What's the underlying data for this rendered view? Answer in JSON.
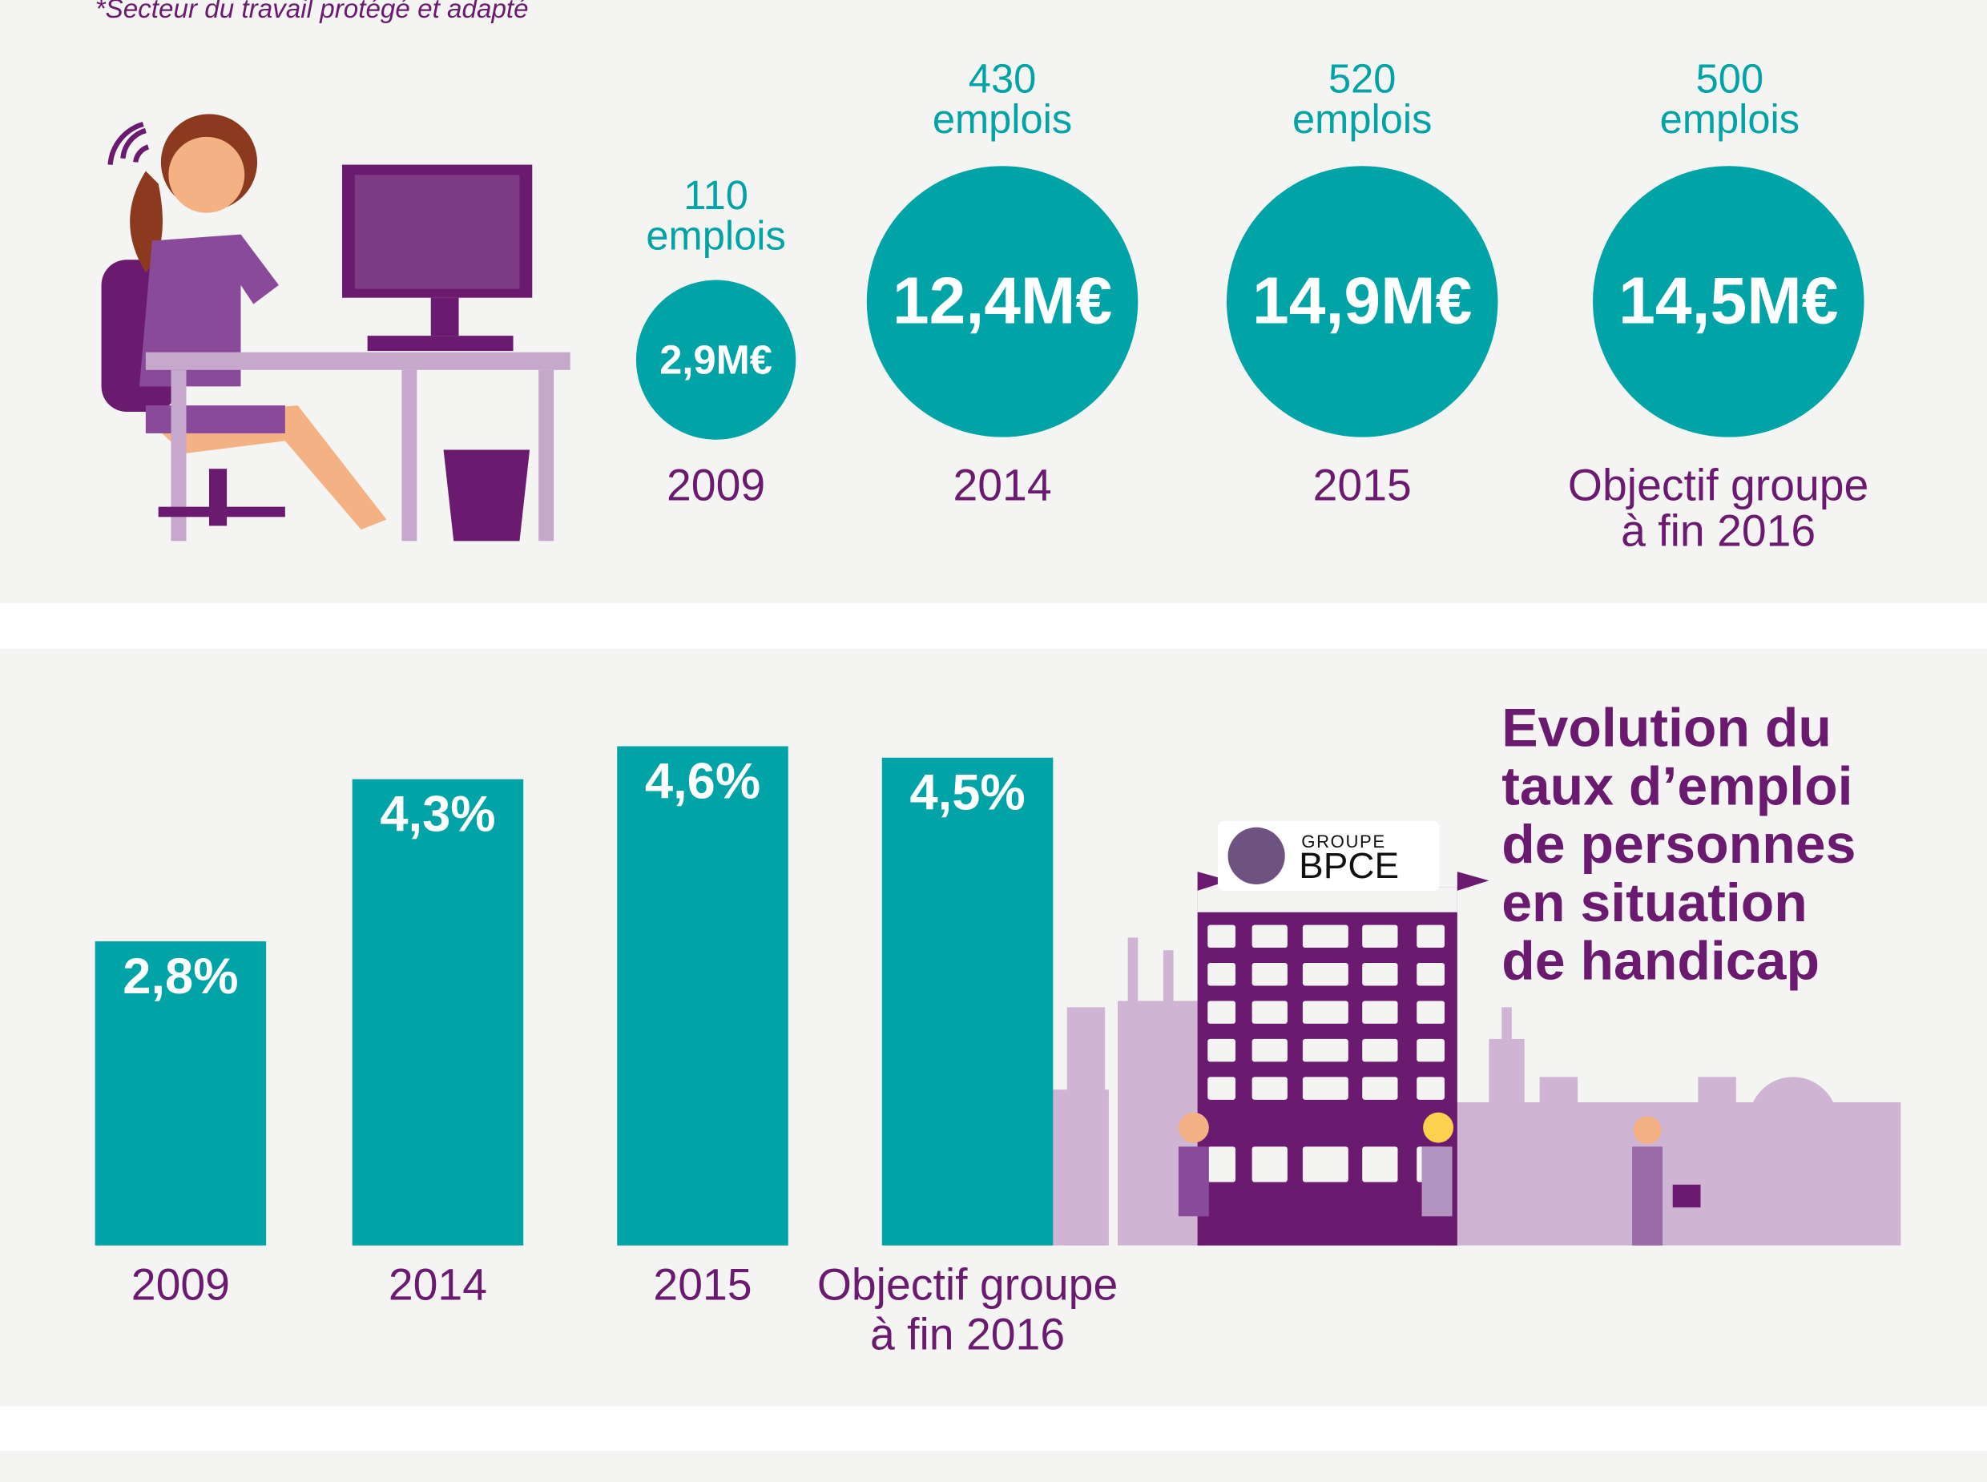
{
  "footnote": "*Secteur du travail protégé et adapté",
  "colors": {
    "teal": "#00a3a6",
    "purple": "#6a1a6f",
    "light_purple": "#cfb5d3",
    "background": "#f4f4f2"
  },
  "circles": [
    {
      "jobs": "110",
      "jobs_unit": "emplois",
      "amount": "2,9M€",
      "year": "2009",
      "year_line2": ""
    },
    {
      "jobs": "430",
      "jobs_unit": "emplois",
      "amount": "12,4M€",
      "year": "2014",
      "year_line2": ""
    },
    {
      "jobs": "520",
      "jobs_unit": "emplois",
      "amount": "14,9M€",
      "year": "2015",
      "year_line2": ""
    },
    {
      "jobs": "500",
      "jobs_unit": "emplois",
      "amount": "14,5M€",
      "year": "Objectif groupe",
      "year_line2": "à fin 2016"
    }
  ],
  "logo": {
    "line1": "GROUPE",
    "line2": "BPCE"
  },
  "chart_data": {
    "type": "bar",
    "title": "Evolution du taux d’emploi de personnes en situation de handicap",
    "title_lines": [
      "Evolution du",
      "taux d’emploi",
      "de personnes",
      "en situation",
      "de handicap"
    ],
    "categories": [
      "2009",
      "2014",
      "2015",
      "Objectif groupe|à fin 2016"
    ],
    "category_lines": [
      [
        "2009"
      ],
      [
        "2014"
      ],
      [
        "2015"
      ],
      [
        "Objectif groupe",
        "à fin 2016"
      ]
    ],
    "values": [
      2.8,
      4.3,
      4.6,
      4.5
    ],
    "value_labels": [
      "2,8%",
      "4,3%",
      "4,6%",
      "4,5%"
    ],
    "unit": "%",
    "ylim": [
      0,
      4.6
    ],
    "grid": false,
    "legend": "none",
    "color": "#00a3a6"
  }
}
